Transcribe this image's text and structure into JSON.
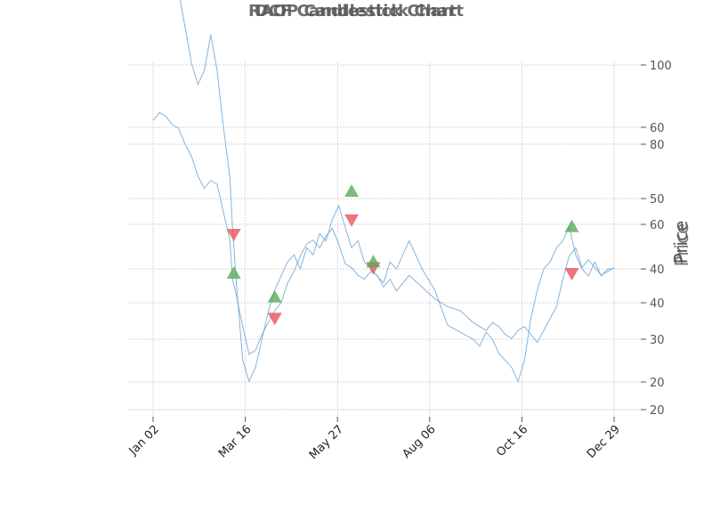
{
  "chart_data": {
    "type": "line",
    "titles": [
      "RAOP Candlestick Chart",
      "DCF Candlestick Chart"
    ],
    "ylabel": "Price",
    "x_ticks": [
      "Jan 02",
      "Mar 16",
      "May 27",
      "Aug 06",
      "Oct 16",
      "Dec 29"
    ],
    "y_ticks_outer": [
      100,
      80,
      60,
      40,
      20
    ],
    "y_ticks_inner": [
      60,
      50,
      40,
      30,
      20
    ],
    "colors": {
      "line": "#6fa8d6",
      "buy": "#5aaa5a",
      "sell": "#e8545a"
    },
    "series": [
      {
        "axis": "outer",
        "x": [
          0,
          5,
          10,
          15,
          20,
          25,
          30,
          35,
          40,
          45,
          50,
          55,
          60,
          62,
          65,
          70,
          75,
          80,
          85,
          90,
          95,
          100,
          105,
          110,
          115,
          120,
          125,
          130,
          135,
          140,
          145,
          150,
          155,
          160,
          165,
          170,
          175,
          180,
          185,
          190,
          195,
          200,
          210,
          220,
          230,
          240,
          250,
          255,
          260,
          265,
          270,
          275,
          280,
          285,
          290,
          295,
          300,
          305,
          310,
          315,
          320,
          325,
          330,
          335,
          340,
          345,
          350,
          355,
          360
        ],
        "y": [
          86,
          88,
          87,
          85,
          84,
          80,
          77,
          72,
          69,
          71,
          70,
          63,
          56,
          46,
          42,
          34,
          27,
          28,
          32,
          35,
          38,
          40,
          45,
          48,
          52,
          55,
          56,
          54,
          57,
          59,
          55,
          50,
          49,
          47,
          46,
          48,
          47,
          44,
          46,
          43,
          45,
          47,
          44,
          41,
          39,
          38,
          35,
          34,
          33,
          35,
          34,
          32,
          31,
          33,
          34,
          32,
          30,
          33,
          36,
          39,
          46,
          52,
          54,
          49,
          51,
          49,
          47,
          48,
          49
        ]
      },
      {
        "axis": "inner",
        "x": [
          0,
          5,
          10,
          15,
          20,
          25,
          30,
          35,
          40,
          45,
          50,
          55,
          60,
          62,
          65,
          70,
          75,
          80,
          85,
          90,
          95,
          100,
          105,
          110,
          115,
          120,
          125,
          130,
          135,
          140,
          145,
          150,
          155,
          160,
          165,
          170,
          175,
          180,
          185,
          190,
          195,
          200,
          210,
          220,
          230,
          240,
          250,
          255,
          260,
          265,
          270,
          275,
          280,
          285,
          290,
          295,
          300,
          305,
          310,
          315,
          320,
          325,
          330,
          335,
          340,
          345,
          350,
          355,
          360
        ],
        "y": [
          86,
          87,
          86,
          83,
          79,
          74,
          69,
          66,
          68,
          73,
          68,
          60,
          53,
          46,
          38,
          27,
          24,
          26,
          30,
          34,
          37,
          39,
          41,
          42,
          40,
          43,
          42,
          45,
          44,
          47,
          49,
          46,
          43,
          44,
          41,
          40,
          39,
          38,
          41,
          40,
          42,
          44,
          40,
          37,
          32,
          31,
          30,
          29,
          31,
          30,
          28,
          27,
          26,
          24,
          27,
          33,
          37,
          40,
          41,
          43,
          44,
          46,
          42,
          40,
          39,
          41,
          39,
          40,
          40
        ]
      }
    ],
    "markers": [
      {
        "type": "sell",
        "axis": "outer",
        "x": 63,
        "y": 57.5
      },
      {
        "type": "buy",
        "axis": "outer",
        "x": 63,
        "y": 47.5
      },
      {
        "type": "buy",
        "axis": "inner",
        "x": 95,
        "y": 36
      },
      {
        "type": "sell",
        "axis": "inner",
        "x": 95,
        "y": 33
      },
      {
        "type": "buy",
        "axis": "inner",
        "x": 155,
        "y": 51
      },
      {
        "type": "sell",
        "axis": "inner",
        "x": 155,
        "y": 47
      },
      {
        "type": "sell",
        "axis": "outer",
        "x": 172,
        "y": 49
      },
      {
        "type": "buy",
        "axis": "inner",
        "x": 172,
        "y": 41
      },
      {
        "type": "buy",
        "axis": "inner",
        "x": 327,
        "y": 46
      },
      {
        "type": "sell",
        "axis": "outer",
        "x": 327,
        "y": 47.5
      }
    ]
  }
}
